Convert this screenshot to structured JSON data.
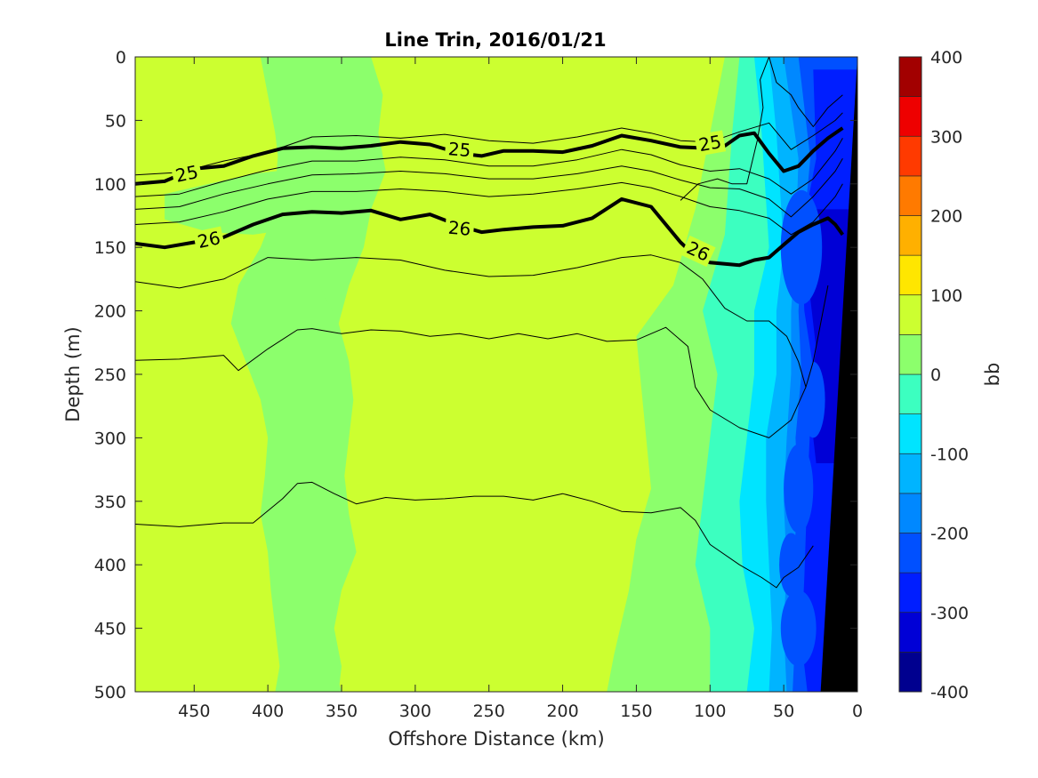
{
  "chart_data": {
    "type": "contourf",
    "title": "Line Trin, 2016/01/21",
    "xlabel": "Offshore Distance (km)",
    "ylabel": "Depth (m)",
    "colorbar_label": "bb",
    "xlim": [
      490,
      0
    ],
    "ylim": [
      0,
      500
    ],
    "x_direction": "reversed",
    "y_direction": "reversed",
    "x_ticks": [
      450,
      400,
      350,
      300,
      250,
      200,
      150,
      100,
      50,
      0
    ],
    "y_ticks": [
      0,
      50,
      100,
      150,
      200,
      250,
      300,
      350,
      400,
      450,
      500
    ],
    "colorbar": {
      "range": [
        -400,
        400
      ],
      "ticks": [
        400,
        300,
        200,
        100,
        0,
        -100,
        -200,
        -300,
        -400
      ],
      "levels": [
        -400,
        -350,
        -300,
        -250,
        -200,
        -150,
        -100,
        -50,
        0,
        50,
        100,
        150,
        200,
        250,
        300,
        350,
        400
      ],
      "colors": [
        "#00008f",
        "#0000d6",
        "#001eff",
        "#0050ff",
        "#0088ff",
        "#00b4ff",
        "#00e4ff",
        "#3cffc0",
        "#8cff6c",
        "#ccff30",
        "#ffe600",
        "#ffb000",
        "#ff7a00",
        "#ff3a00",
        "#ee0000",
        "#a20000"
      ]
    },
    "field_regions": [
      {
        "level": "0 to 50",
        "x": [
          375,
          400,
          405,
          392,
          390,
          370,
          350,
          320,
          325,
          310,
          300,
          280,
          285,
          275,
          280,
          262,
          265,
          270,
          275,
          292,
          300,
          330,
          345,
          360,
          380,
          375,
          355,
          370,
          372,
          382,
          360,
          310,
          300,
          290,
          255,
          260,
          240,
          220,
          210,
          205,
          240,
          270,
          300,
          310,
          330,
          360,
          375
        ]
      },
      {
        "level": "0 to 50",
        "x": [
          110,
          70,
          60,
          50,
          55,
          70,
          95,
          100,
          110,
          130,
          150,
          160,
          150,
          120,
          130,
          118,
          160,
          140,
          120,
          130,
          130,
          110,
          128,
          110,
          114
        ]
      },
      {
        "level": "0 to 50",
        "x": [
          478,
          465,
          450,
          440,
          430,
          460,
          478
        ]
      }
    ],
    "density_contours": [
      {
        "sigma": 25,
        "bold": true,
        "x": [
          490,
          470,
          450,
          430,
          410,
          390,
          370,
          350,
          330,
          310,
          290,
          270,
          255,
          240,
          220,
          200,
          180,
          160,
          140,
          120,
          100,
          90,
          80,
          70,
          60,
          50,
          40,
          30,
          20,
          10
        ],
        "depth": [
          100,
          98,
          88,
          86,
          78,
          72,
          71,
          72,
          70,
          67,
          69,
          76,
          78,
          74,
          74,
          75,
          70,
          62,
          66,
          71,
          72,
          70,
          62,
          60,
          76,
          90,
          86,
          74,
          64,
          56
        ],
        "labels": [
          {
            "x": 455,
            "depth": 92
          },
          {
            "x": 270,
            "depth": 73
          },
          {
            "x": 100,
            "depth": 68
          }
        ]
      },
      {
        "sigma": 26,
        "bold": true,
        "x": [
          490,
          470,
          450,
          430,
          410,
          390,
          370,
          350,
          330,
          310,
          290,
          270,
          255,
          240,
          220,
          200,
          180,
          160,
          140,
          120,
          110,
          100,
          90,
          80,
          70,
          60,
          50,
          40,
          30,
          20,
          15,
          10
        ],
        "depth": [
          147,
          150,
          146,
          142,
          132,
          124,
          122,
          123,
          121,
          128,
          124,
          133,
          138,
          136,
          134,
          133,
          127,
          112,
          118,
          146,
          157,
          162,
          163,
          164,
          160,
          158,
          148,
          138,
          132,
          127,
          132,
          140
        ],
        "labels": [
          {
            "x": 440,
            "depth": 144
          },
          {
            "x": 270,
            "depth": 135
          },
          {
            "x": 108,
            "depth": 153
          }
        ]
      },
      {
        "sigma": null,
        "bold": false,
        "x": [
          490,
          460,
          430,
          400,
          370,
          340,
          310,
          280,
          250,
          220,
          190,
          160,
          140,
          120,
          100,
          80,
          60,
          45,
          30,
          15,
          10
        ],
        "depth": [
          93,
          91,
          82,
          75,
          63,
          62,
          64,
          61,
          66,
          68,
          63,
          56,
          60,
          66,
          67,
          59,
          52,
          73,
          62,
          50,
          44
        ]
      },
      {
        "sigma": null,
        "bold": false,
        "x": [
          490,
          460,
          430,
          400,
          370,
          340,
          310,
          280,
          250,
          220,
          190,
          160,
          140,
          120,
          100,
          80,
          60,
          45,
          30,
          15,
          10
        ],
        "depth": [
          110,
          108,
          98,
          89,
          82,
          82,
          79,
          81,
          86,
          86,
          81,
          73,
          77,
          85,
          90,
          88,
          96,
          108,
          96,
          74,
          64
        ]
      },
      {
        "sigma": null,
        "bold": false,
        "x": [
          490,
          460,
          430,
          400,
          370,
          340,
          310,
          280,
          250,
          220,
          190,
          160,
          140,
          120,
          100,
          80,
          60,
          45,
          30,
          15,
          10
        ],
        "depth": [
          120,
          118,
          108,
          100,
          93,
          92,
          90,
          92,
          96,
          96,
          92,
          86,
          90,
          97,
          103,
          104,
          112,
          126,
          110,
          90,
          80
        ]
      },
      {
        "sigma": null,
        "bold": false,
        "x": [
          490,
          460,
          430,
          400,
          370,
          340,
          310,
          280,
          250,
          220,
          190,
          160,
          140,
          120,
          100,
          80,
          60,
          45,
          30,
          15,
          10
        ],
        "depth": [
          132,
          130,
          122,
          112,
          106,
          106,
          104,
          106,
          110,
          108,
          104,
          99,
          103,
          110,
          118,
          121,
          127,
          140,
          130,
          110,
          100
        ]
      },
      {
        "sigma": null,
        "bold": false,
        "x": [
          490,
          460,
          430,
          400,
          370,
          340,
          310,
          280,
          250,
          220,
          190,
          160,
          140,
          120,
          105,
          90,
          75,
          60,
          48,
          40,
          35,
          30,
          25,
          20
        ],
        "depth": [
          177,
          182,
          175,
          158,
          160,
          158,
          160,
          168,
          173,
          172,
          166,
          158,
          156,
          162,
          175,
          198,
          208,
          208,
          220,
          240,
          260,
          240,
          210,
          180
        ]
      },
      {
        "sigma": null,
        "bold": false,
        "x": [
          490,
          460,
          430,
          420,
          400,
          380,
          370,
          350,
          330,
          310,
          290,
          270,
          250,
          230,
          210,
          190,
          170,
          150,
          130,
          115,
          110,
          100,
          80,
          60,
          45,
          35
        ],
        "depth": [
          239,
          238,
          235,
          247,
          230,
          215,
          214,
          218,
          215,
          216,
          220,
          218,
          222,
          218,
          222,
          218,
          224,
          223,
          213,
          228,
          260,
          278,
          292,
          300,
          286,
          260
        ]
      },
      {
        "sigma": null,
        "bold": false,
        "x": [
          490,
          460,
          430,
          410,
          390,
          380,
          370,
          355,
          340,
          320,
          300,
          280,
          260,
          240,
          220,
          200,
          180,
          160,
          140,
          120,
          110,
          100,
          80,
          65,
          55,
          50,
          40,
          30
        ],
        "depth": [
          368,
          370,
          367,
          367,
          348,
          336,
          335,
          344,
          352,
          347,
          349,
          348,
          346,
          346,
          349,
          344,
          350,
          358,
          359,
          355,
          365,
          384,
          400,
          410,
          418,
          410,
          402,
          385
        ]
      },
      {
        "sigma": null,
        "bold": false,
        "x": [
          120,
          108,
          95,
          85,
          75,
          68,
          64,
          66,
          60,
          55,
          45,
          40,
          30,
          20,
          10
        ],
        "depth": [
          113,
          100,
          96,
          100,
          100,
          66,
          40,
          18,
          0,
          20,
          30,
          40,
          55,
          40,
          30
        ]
      }
    ],
    "land_mask": {
      "x_surface": 0,
      "x_bottom": 25,
      "color": "#000000"
    }
  }
}
